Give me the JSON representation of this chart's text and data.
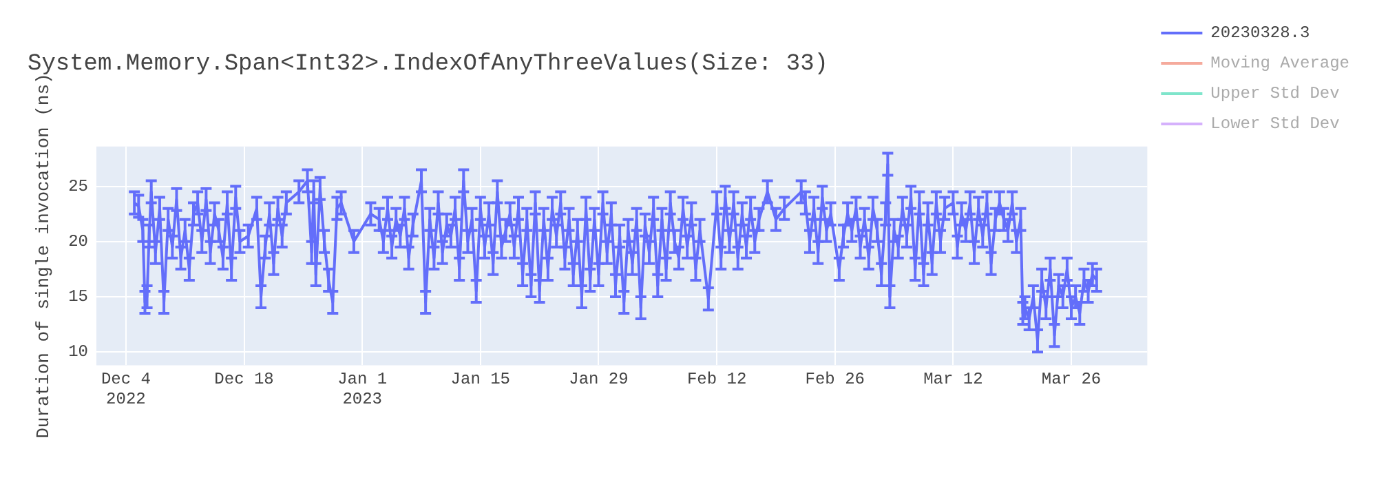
{
  "chart_data": {
    "type": "line",
    "title": "System.Memory.Span<Int32>.IndexOfAnyThreeValues(Size: 33)",
    "ylabel": "Duration of single invocation (ns)",
    "xlim": [
      "2022-11-30T12:00",
      "2023-04-04T00:00"
    ],
    "xticks": [
      {
        "value": "2022-12-04",
        "label": "Dec 4\n2022"
      },
      {
        "value": "2022-12-18",
        "label": "Dec 18"
      },
      {
        "value": "2023-01-01",
        "label": "Jan 1\n2023"
      },
      {
        "value": "2023-01-15",
        "label": "Jan 15"
      },
      {
        "value": "2023-01-29",
        "label": "Jan 29"
      },
      {
        "value": "2023-02-12",
        "label": "Feb 12"
      },
      {
        "value": "2023-02-26",
        "label": "Feb 26"
      },
      {
        "value": "2023-03-12",
        "label": "Mar 12"
      },
      {
        "value": "2023-03-26",
        "label": "Mar 26"
      }
    ],
    "ylim": [
      8.8,
      28.6
    ],
    "yticks": [
      10,
      15,
      20,
      25
    ],
    "grid": true,
    "legend": "top right",
    "line_style": "solid",
    "series": [
      {
        "name": "20230328.3",
        "color": "#636efa",
        "x": [
          "2022-12-05T00:00",
          "2022-12-05T12:00",
          "2022-12-06T00:00",
          "2022-12-06T06:00",
          "2022-12-06T12:00",
          "2022-12-06T18:00",
          "2022-12-07T00:00",
          "2022-12-07T12:00",
          "2022-12-08T00:00",
          "2022-12-08T12:00",
          "2022-12-09T00:00",
          "2022-12-09T12:00",
          "2022-12-10T00:00",
          "2022-12-10T12:00",
          "2022-12-11T00:00",
          "2022-12-11T12:00",
          "2022-12-12T00:00",
          "2022-12-12T12:00",
          "2022-12-13T00:00",
          "2022-12-13T12:00",
          "2022-12-14T00:00",
          "2022-12-14T12:00",
          "2022-12-15T00:00",
          "2022-12-15T12:00",
          "2022-12-16T00:00",
          "2022-12-16T12:00",
          "2022-12-17T00:00",
          "2022-12-17T12:00",
          "2022-12-18T12:00",
          "2022-12-19T12:00",
          "2022-12-20T00:00",
          "2022-12-20T12:00",
          "2022-12-21T00:00",
          "2022-12-21T12:00",
          "2022-12-22T00:00",
          "2022-12-22T12:00",
          "2022-12-23T00:00",
          "2022-12-24T12:00",
          "2022-12-25T12:00",
          "2022-12-26T00:00",
          "2022-12-26T06:00",
          "2022-12-26T12:00",
          "2022-12-27T00:00",
          "2022-12-27T12:00",
          "2022-12-28T00:00",
          "2022-12-28T12:00",
          "2022-12-29T00:00",
          "2022-12-29T12:00",
          "2022-12-31T00:00",
          "2023-01-02T00:00",
          "2023-01-03T00:00",
          "2023-01-03T12:00",
          "2023-01-04T00:00",
          "2023-01-04T12:00",
          "2023-01-05T00:00",
          "2023-01-05T12:00",
          "2023-01-06T00:00",
          "2023-01-06T12:00",
          "2023-01-07T00:00",
          "2023-01-08T00:00",
          "2023-01-08T12:00",
          "2023-01-09T00:00",
          "2023-01-09T12:00",
          "2023-01-10T00:00",
          "2023-01-10T12:00",
          "2023-01-11T00:00",
          "2023-01-11T12:00",
          "2023-01-12T00:00",
          "2023-01-12T12:00",
          "2023-01-13T00:00",
          "2023-01-13T12:00",
          "2023-01-14T00:00",
          "2023-01-14T12:00",
          "2023-01-15T00:00",
          "2023-01-15T12:00",
          "2023-01-16T00:00",
          "2023-01-16T12:00",
          "2023-01-17T00:00",
          "2023-01-17T12:00",
          "2023-01-18T00:00",
          "2023-01-18T12:00",
          "2023-01-19T00:00",
          "2023-01-19T12:00",
          "2023-01-20T00:00",
          "2023-01-20T12:00",
          "2023-01-21T00:00",
          "2023-01-21T12:00",
          "2023-01-22T00:00",
          "2023-01-22T12:00",
          "2023-01-23T00:00",
          "2023-01-23T12:00",
          "2023-01-24T00:00",
          "2023-01-24T12:00",
          "2023-01-25T00:00",
          "2023-01-25T12:00",
          "2023-01-26T00:00",
          "2023-01-26T12:00",
          "2023-01-27T00:00",
          "2023-01-27T12:00",
          "2023-01-28T00:00",
          "2023-01-28T12:00",
          "2023-01-29T00:00",
          "2023-01-29T12:00",
          "2023-01-30T00:00",
          "2023-01-30T12:00",
          "2023-01-31T00:00",
          "2023-01-31T12:00",
          "2023-02-01T00:00",
          "2023-02-01T12:00",
          "2023-02-02T00:00",
          "2023-02-02T12:00",
          "2023-02-03T00:00",
          "2023-02-03T12:00",
          "2023-02-04T00:00",
          "2023-02-04T12:00",
          "2023-02-05T00:00",
          "2023-02-05T12:00",
          "2023-02-06T00:00",
          "2023-02-06T12:00",
          "2023-02-07T00:00",
          "2023-02-07T12:00",
          "2023-02-08T00:00",
          "2023-02-08T12:00",
          "2023-02-09T00:00",
          "2023-02-09T12:00",
          "2023-02-10T00:00",
          "2023-02-11T00:00",
          "2023-02-12T00:00",
          "2023-02-12T12:00",
          "2023-02-13T00:00",
          "2023-02-13T12:00",
          "2023-02-14T00:00",
          "2023-02-14T12:00",
          "2023-02-15T00:00",
          "2023-02-15T12:00",
          "2023-02-16T00:00",
          "2023-02-16T12:00",
          "2023-02-17T00:00",
          "2023-02-18T00:00",
          "2023-02-19T00:00",
          "2023-02-20T00:00",
          "2023-02-22T00:00",
          "2023-02-22T12:00",
          "2023-02-23T00:00",
          "2023-02-23T12:00",
          "2023-02-24T00:00",
          "2023-02-24T12:00",
          "2023-02-25T00:00",
          "2023-02-25T12:00",
          "2023-02-26T12:00",
          "2023-02-27T00:00",
          "2023-02-27T12:00",
          "2023-02-28T00:00",
          "2023-02-28T12:00",
          "2023-03-01T00:00",
          "2023-03-01T12:00",
          "2023-03-02T00:00",
          "2023-03-02T12:00",
          "2023-03-03T00:00",
          "2023-03-03T12:00",
          "2023-03-04T00:00",
          "2023-03-04T06:00",
          "2023-03-04T12:00",
          "2023-03-05T00:00",
          "2023-03-05T12:00",
          "2023-03-06T00:00",
          "2023-03-06T12:00",
          "2023-03-07T00:00",
          "2023-03-07T12:00",
          "2023-03-08T00:00",
          "2023-03-08T12:00",
          "2023-03-09T00:00",
          "2023-03-09T12:00",
          "2023-03-10T00:00",
          "2023-03-10T12:00",
          "2023-03-11T00:00",
          "2023-03-12T00:00",
          "2023-03-12T12:00",
          "2023-03-13T00:00",
          "2023-03-13T12:00",
          "2023-03-14T00:00",
          "2023-03-14T12:00",
          "2023-03-15T00:00",
          "2023-03-15T12:00",
          "2023-03-16T00:00",
          "2023-03-16T12:00",
          "2023-03-17T00:00",
          "2023-03-17T12:00",
          "2023-03-18T00:00",
          "2023-03-18T12:00",
          "2023-03-19T00:00",
          "2023-03-19T12:00",
          "2023-03-20T00:00",
          "2023-03-20T06:00",
          "2023-03-20T12:00",
          "2023-03-21T00:00",
          "2023-03-21T12:00",
          "2023-03-22T00:00",
          "2023-03-22T12:00",
          "2023-03-23T00:00",
          "2023-03-23T12:00",
          "2023-03-24T00:00",
          "2023-03-24T12:00",
          "2023-03-25T00:00",
          "2023-03-25T12:00",
          "2023-03-26T00:00",
          "2023-03-26T12:00",
          "2023-03-27T00:00",
          "2023-03-27T12:00",
          "2023-03-28T00:00",
          "2023-03-28T12:00",
          "2023-03-29T00:00"
        ],
        "values": [
          23.5,
          23.2,
          21,
          14.5,
          15,
          20.5,
          24.5,
          19,
          23,
          14.5,
          22,
          19.5,
          23.8,
          18.5,
          21,
          17.5,
          22.5,
          23.5,
          20,
          23.8,
          19,
          22.5,
          21,
          18.5,
          23.5,
          17.5,
          24,
          20,
          20.5,
          23,
          15,
          19.5,
          22.5,
          18,
          23,
          20.5,
          23.5,
          24.5,
          25.5,
          19,
          24.5,
          17,
          24.8,
          20,
          16.5,
          14.5,
          23,
          23.5,
          20,
          22.5,
          22,
          20,
          23,
          19.5,
          22,
          20.5,
          23,
          18.5,
          21.5,
          25.5,
          14.5,
          22,
          18.5,
          23.5,
          19,
          21.5,
          20.5,
          23,
          17.5,
          25.5,
          20,
          22,
          15.5,
          23,
          19.5,
          22.5,
          18,
          24.5,
          19.5,
          21,
          22.5,
          19.5,
          23,
          17,
          22,
          16,
          23.5,
          15.5,
          22,
          17.5,
          23,
          20.5,
          23.5,
          18.5,
          22,
          17,
          21,
          15,
          23,
          16.5,
          22,
          17,
          23.5,
          19,
          22.5,
          16,
          20.5,
          14.5,
          21,
          18,
          22,
          14,
          21.5,
          19,
          23,
          16,
          22,
          17.5,
          23.5,
          20,
          18.5,
          23,
          19.5,
          22.5,
          17.5,
          21,
          14.8,
          23.5,
          18.5,
          24,
          20,
          23.5,
          18.5,
          22.5,
          19.5,
          23,
          20,
          22,
          24.5,
          22,
          23,
          24.5,
          23.5,
          20,
          23,
          19,
          24,
          21,
          22.5,
          17.5,
          20.5,
          22.5,
          21,
          23,
          19.5,
          22,
          18.5,
          23,
          21,
          17,
          22.5,
          27,
          15,
          21,
          19.5,
          23,
          20.5,
          24,
          17.5,
          23.5,
          17,
          22.5,
          18,
          23.5,
          20,
          23,
          23.5,
          19.5,
          22.5,
          21,
          23.5,
          19,
          23,
          20.5,
          23.5,
          18,
          22,
          23.5,
          22,
          21,
          23.5,
          20,
          22,
          13.5,
          14,
          13,
          15,
          11,
          16.5,
          14,
          17.5,
          11.5,
          16,
          15,
          17.5,
          14,
          15,
          13.5,
          16.5,
          15.5,
          17,
          16.5
        ],
        "errors": [
          1,
          1,
          1,
          1,
          1,
          1,
          1,
          1,
          1,
          1,
          1,
          1,
          1,
          1,
          1,
          1,
          1,
          1,
          1,
          1,
          1,
          1,
          1,
          1,
          1,
          1,
          1,
          1,
          1,
          1,
          1,
          1,
          1,
          1,
          1,
          1,
          1,
          1,
          1,
          1,
          1,
          1,
          1,
          1,
          1,
          1,
          1,
          1,
          1,
          1,
          1,
          1,
          1,
          1,
          1,
          1,
          1,
          1,
          1,
          1,
          1,
          1,
          1,
          1,
          1,
          1,
          1,
          1,
          1,
          1,
          1,
          1,
          1,
          1,
          1,
          1,
          1,
          1,
          1,
          1,
          1,
          1,
          1,
          1,
          1,
          1,
          1,
          1,
          1,
          1,
          1,
          1,
          1,
          1,
          1,
          1,
          1,
          1,
          1,
          1,
          1,
          1,
          1,
          1,
          1,
          1,
          1,
          1,
          1,
          1,
          1,
          1,
          1,
          1,
          1,
          1,
          1,
          1,
          1,
          1,
          1,
          1,
          1,
          1,
          1,
          1,
          1,
          1,
          1,
          1,
          1,
          1,
          1,
          1,
          1,
          1,
          1,
          1,
          1,
          1,
          1,
          1,
          1,
          1,
          1,
          1,
          1,
          1,
          1,
          1,
          1,
          1,
          1,
          1,
          1,
          1,
          1,
          1,
          1,
          1,
          1,
          1,
          1,
          1,
          1,
          1,
          1,
          1,
          1,
          1,
          1,
          1,
          1,
          1,
          1,
          1,
          1,
          1,
          1,
          1,
          1,
          1,
          1,
          1,
          1,
          1,
          1,
          1,
          1,
          1,
          1,
          1,
          1,
          1,
          1,
          1,
          1,
          1,
          1,
          1,
          1,
          1,
          1,
          1,
          1,
          1,
          1,
          1,
          1,
          1,
          1,
          1
        ]
      },
      {
        "name": "Moving Average",
        "color": "#f5aa9c",
        "values": [
          null
        ]
      },
      {
        "name": "Upper Std Dev",
        "color": "#7fe5cb",
        "values": [
          null
        ]
      },
      {
        "name": "Lower Std Dev",
        "color": "#d5b1fc",
        "values": [
          null
        ]
      }
    ]
  }
}
